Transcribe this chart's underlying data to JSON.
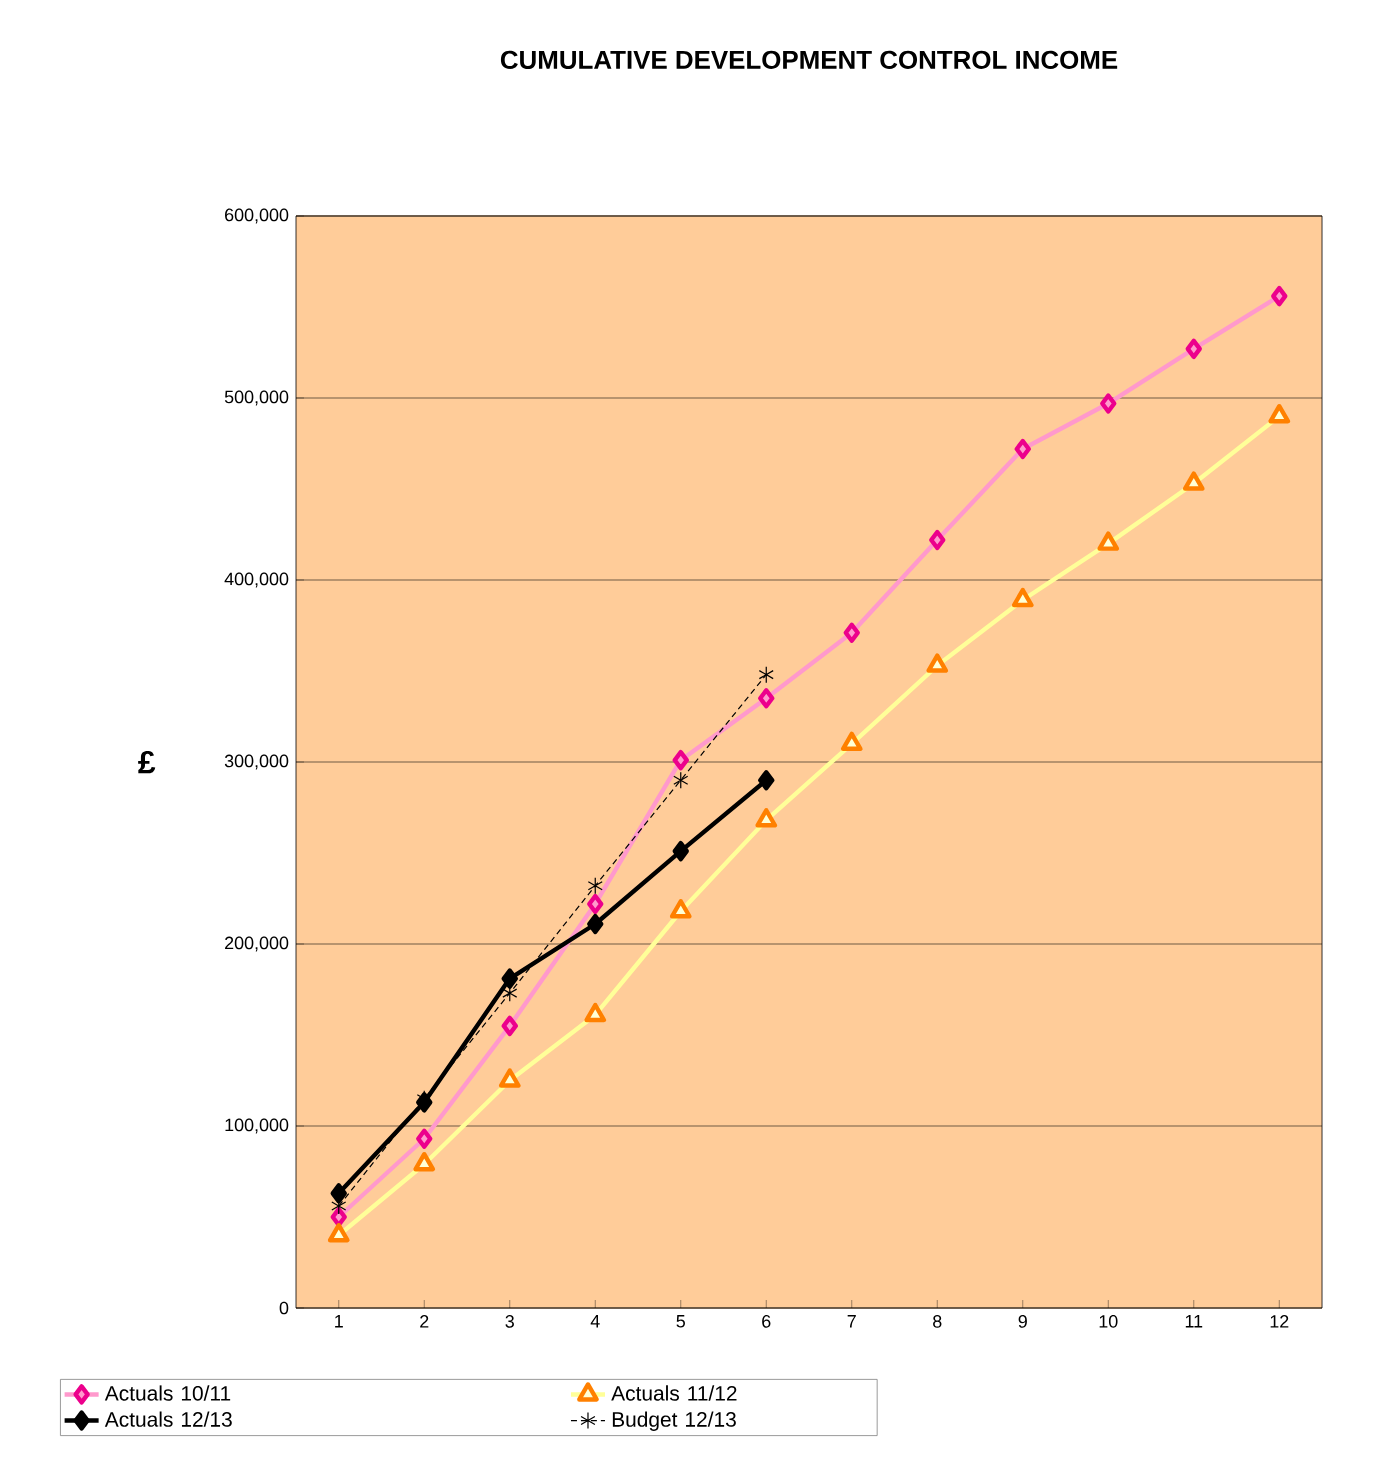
{
  "chart_data": {
    "type": "line",
    "title": "CUMULATIVE DEVELOPMENT CONTROL INCOME",
    "ylabel": "£",
    "x": [
      1,
      2,
      3,
      4,
      5,
      6,
      7,
      8,
      9,
      10,
      11,
      12
    ],
    "xlim": [
      0.5,
      12.5
    ],
    "xticks": [
      1,
      2,
      3,
      4,
      5,
      6,
      7,
      8,
      9,
      10,
      11,
      12
    ],
    "ylim": [
      0,
      600000
    ],
    "yticks": [
      {
        "value": 0,
        "label": "0"
      },
      {
        "value": 100000,
        "label": "100,000"
      },
      {
        "value": 200000,
        "label": "200,000"
      },
      {
        "value": 300000,
        "label": "300,000"
      },
      {
        "value": 400000,
        "label": "400,000"
      },
      {
        "value": 500000,
        "label": "500,000"
      },
      {
        "value": 600000,
        "label": "600,000"
      }
    ],
    "grid": "y",
    "legend": "bottom",
    "series": [
      {
        "name": "Actuals 10/11",
        "color": "#ff99cc",
        "marker": "diamond",
        "line_style": "solid",
        "values": [
          50000,
          93000,
          155000,
          222000,
          301000,
          335000,
          371000,
          422000,
          472000,
          497000,
          527000,
          556000
        ]
      },
      {
        "name": "Actuals 11/12",
        "color": "#ffff99",
        "marker": "triangle",
        "line_style": "solid",
        "values": [
          40000,
          79000,
          125000,
          161000,
          218000,
          268000,
          310000,
          353000,
          389000,
          420000,
          453000,
          490000
        ]
      },
      {
        "name": "Actuals 12/13",
        "color": "#000000",
        "marker": "diamond",
        "line_style": "solid",
        "values": [
          63000,
          113000,
          181000,
          211000,
          251000,
          290000,
          null,
          null,
          null,
          null,
          null,
          null
        ]
      },
      {
        "name": "Budget  12/13",
        "color": "#000000",
        "marker": "cross",
        "line_style": "dashed",
        "values": [
          56000,
          115000,
          173000,
          232000,
          290000,
          348000,
          null,
          null,
          null,
          null,
          null,
          null
        ]
      }
    ]
  }
}
